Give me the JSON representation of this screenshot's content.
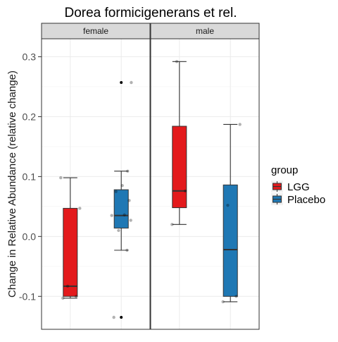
{
  "chart_data": {
    "type": "boxplot",
    "title": "Dorea formicigenerans et rel.",
    "ylabel": "Change in Relative Abundance (relative change)",
    "xlabel": "",
    "ylim": [
      -0.155,
      0.33
    ],
    "y_ticks": [
      -0.1,
      0.0,
      0.1,
      0.2,
      0.3
    ],
    "y_tick_labels": [
      "-0.1",
      "0.0",
      "0.1",
      "0.2",
      "0.3"
    ],
    "grid": true,
    "legend_position": "right",
    "legend_title": "group",
    "groups": [
      {
        "name": "LGG",
        "color": "#e31a1c"
      },
      {
        "name": "Placebo",
        "color": "#1f78b4"
      }
    ],
    "facets": [
      {
        "label": "female",
        "boxes": [
          {
            "group": "LGG",
            "whisker_low": -0.103,
            "q1": -0.1,
            "median": -0.083,
            "q3": 0.047,
            "whisker_high": 0.098,
            "outliers": [],
            "points": [
              -0.103,
              -0.1,
              -0.083,
              0.047,
              0.098
            ]
          },
          {
            "group": "Placebo",
            "whisker_low": -0.023,
            "q1": 0.014,
            "median": 0.035,
            "q3": 0.078,
            "whisker_high": 0.109,
            "outliers": [
              0.257,
              -0.135
            ],
            "points": [
              -0.135,
              -0.023,
              0.01,
              0.027,
              0.035,
              0.036,
              0.06,
              0.075,
              0.085,
              0.109,
              0.257
            ]
          }
        ]
      },
      {
        "label": "male",
        "boxes": [
          {
            "group": "LGG",
            "whisker_low": 0.02,
            "q1": 0.048,
            "median": 0.076,
            "q3": 0.184,
            "whisker_high": 0.292,
            "outliers": [],
            "points": [
              0.02,
              0.076,
              0.292
            ]
          },
          {
            "group": "Placebo",
            "whisker_low": -0.109,
            "q1": -0.1,
            "median": -0.022,
            "q3": 0.086,
            "whisker_high": 0.187,
            "outliers": [],
            "points": [
              -0.109,
              -0.1,
              0.052,
              0.187
            ]
          }
        ]
      }
    ]
  }
}
